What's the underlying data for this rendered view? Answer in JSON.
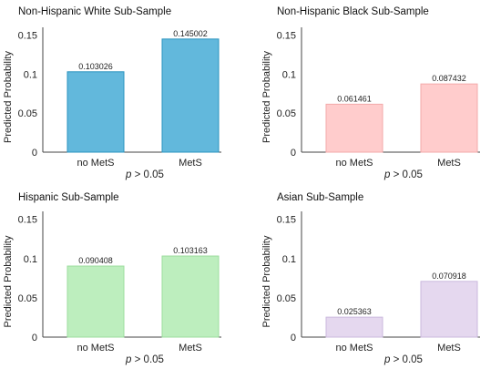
{
  "chart_data": [
    {
      "type": "bar",
      "title": "Non-Hispanic White Sub-Sample",
      "ylabel": "Predicted Probability",
      "categories": [
        "no MetS",
        "MetS"
      ],
      "values": [
        0.103026,
        0.145002
      ],
      "value_labels": [
        "0.103026",
        "0.145002"
      ],
      "yticks": [
        "0",
        "0.05",
        "0.1",
        "0.15"
      ],
      "ylim": [
        0,
        0.16
      ],
      "note_p": "p",
      "note_rest": " > 0.05",
      "fill": "#62b8dc",
      "stroke": "#2b93bf"
    },
    {
      "type": "bar",
      "title": "Non-Hispanic Black Sub-Sample",
      "ylabel": "Predicted Probability",
      "categories": [
        "no MetS",
        "MetS"
      ],
      "values": [
        0.061461,
        0.087432
      ],
      "value_labels": [
        "0.061461",
        "0.087432"
      ],
      "yticks": [
        "0",
        "0.05",
        "0.1",
        "0.15"
      ],
      "ylim": [
        0,
        0.16
      ],
      "note_p": "p",
      "note_rest": " > 0.05",
      "fill": "#ffcccc",
      "stroke": "#f3aaaa"
    },
    {
      "type": "bar",
      "title": "Hispanic Sub-Sample",
      "ylabel": "Predicted Probability",
      "categories": [
        "no MetS",
        "MetS"
      ],
      "values": [
        0.090408,
        0.103163
      ],
      "value_labels": [
        "0.090408",
        "0.103163"
      ],
      "yticks": [
        "0",
        "0.05",
        "0.1",
        "0.15"
      ],
      "ylim": [
        0,
        0.16
      ],
      "note_p": "p",
      "note_rest": " > 0.05",
      "fill": "#bdeebe",
      "stroke": "#9cdd9e"
    },
    {
      "type": "bar",
      "title": "Asian Sub-Sample",
      "ylabel": "Predicted Probability",
      "categories": [
        "no MetS",
        "MetS"
      ],
      "values": [
        0.025363,
        0.070918
      ],
      "value_labels": [
        "0.025363",
        "0.070918"
      ],
      "yticks": [
        "0",
        "0.05",
        "0.1",
        "0.15"
      ],
      "ylim": [
        0,
        0.16
      ],
      "note_p": "p",
      "note_rest": " > 0.05",
      "fill": "#e5d8ef",
      "stroke": "#cbb9de"
    }
  ]
}
